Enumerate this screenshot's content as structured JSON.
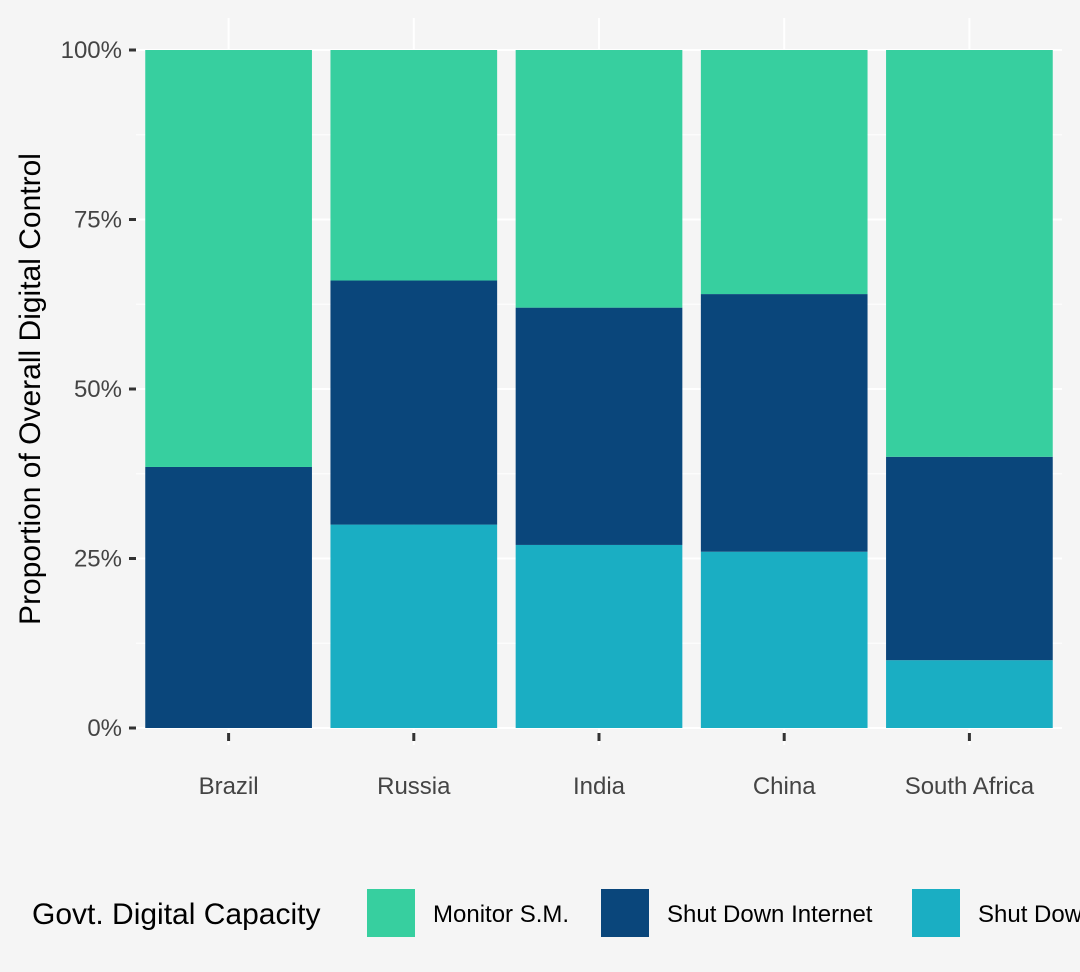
{
  "chart_data": {
    "type": "bar",
    "stacked": true,
    "title": "",
    "xlabel": "",
    "ylabel": "Proportion of Overall Digital Control",
    "ylim": [
      0,
      1
    ],
    "y_ticks": [
      0,
      0.25,
      0.5,
      0.75,
      1
    ],
    "y_tick_labels": [
      "0%",
      "25%",
      "50%",
      "75%",
      "100%"
    ],
    "grid": true,
    "categories": [
      "Brazil",
      "Russia",
      "India",
      "China",
      "South Africa"
    ],
    "series": [
      {
        "name": "Shut Down",
        "color": "#1aaec3",
        "values": [
          0.0,
          0.3,
          0.27,
          0.26,
          0.1
        ]
      },
      {
        "name": "Shut Down Internet",
        "color": "#0a467b",
        "values": [
          0.385,
          0.36,
          0.35,
          0.38,
          0.3
        ]
      },
      {
        "name": "Monitor S.M.",
        "color": "#37cf9f",
        "values": [
          0.615,
          0.34,
          0.38,
          0.36,
          0.6
        ]
      }
    ],
    "legend": {
      "title": "Govt. Digital Capacity",
      "position": "bottom",
      "order": [
        "Monitor S.M.",
        "Shut Down Internet",
        "Shut Down"
      ]
    }
  }
}
